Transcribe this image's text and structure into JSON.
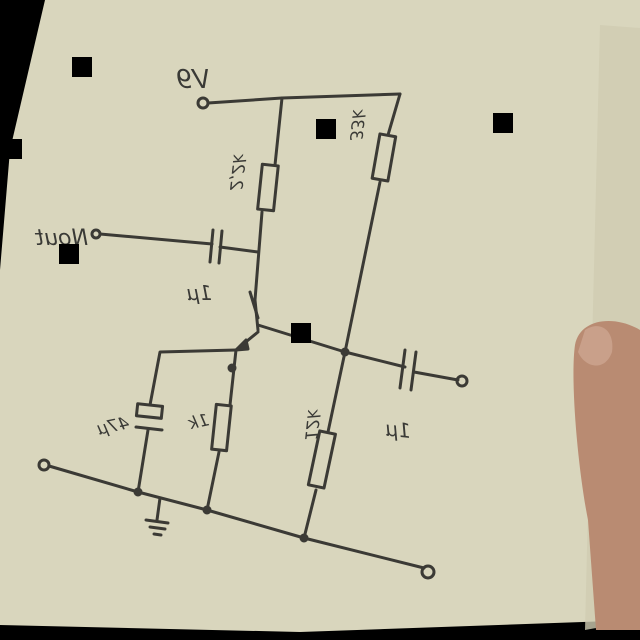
{
  "photo": {
    "paper_color": "#d9d6bd",
    "ink_color": "#3b3a35",
    "background_color": "#000000",
    "skin_color": "#b98b72",
    "scene": "hand-drawn-transistor-amplifier-schematic-on-paper"
  },
  "schematic": {
    "supply_label": "V9",
    "output_label": "Nout",
    "collector_resistor_label": "2,2k",
    "bias_upper_resistor_label": "33k",
    "bias_lower_resistor_label": "12k",
    "emitter_resistor_label": "1k",
    "emitter_bypass_cap_label": "47µ",
    "output_cap_label": "1µ",
    "input_cap_label": "1µ"
  }
}
